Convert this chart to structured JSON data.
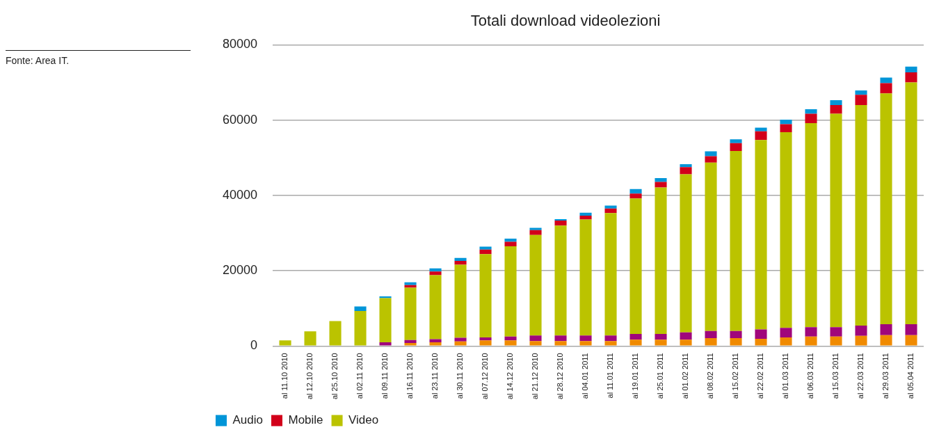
{
  "chart_data": {
    "type": "bar",
    "title": "Totali download videolezioni",
    "annotations": [
      "Fonte: Area IT."
    ],
    "categories": [
      "al 11.10 2010",
      "al 12.10 2010",
      "al 25.10 2010",
      "al 02.11 2010",
      "al 09.11 2010",
      "al 16.11 2010",
      "al 23.11 2010",
      "al 30.11 2010",
      "al 07.12 2010",
      "al 14.12 2010",
      "al 21.12 2010",
      "al 28.12 2010",
      "al 04.01 2011",
      "al 11.01 2011",
      "al 19.01 2011",
      "al 25.01 2011",
      "al 01.02 2011",
      "al 08.02 2011",
      "al 15.02 2011",
      "al 22.02 2011",
      "al 01.03 2011",
      "al 06.03 2011",
      "al 15.03 2011",
      "al 22.03 2011",
      "al 29.03 2011",
      "al 05.04 2011"
    ],
    "stacked": true,
    "series": [
      {
        "color": "#f08a00",
        "values": [
          0,
          0,
          0,
          0,
          0,
          800,
          1000,
          1200,
          1500,
          1500,
          1300,
          1300,
          1300,
          1300,
          1700,
          1700,
          1700,
          2100,
          2100,
          1900,
          2300,
          2500,
          2500,
          2700,
          2900,
          2900
        ]
      },
      {
        "color": "#a0067b",
        "values": [
          0,
          0,
          0,
          0,
          1000,
          800,
          800,
          1000,
          800,
          1000,
          1500,
          1500,
          1500,
          1500,
          1500,
          1500,
          1900,
          1900,
          1900,
          2500,
          2500,
          2500,
          2500,
          2700,
          2900,
          2900
        ]
      },
      {
        "name": "Video",
        "color": "#bbc300",
        "values": [
          1500,
          3900,
          6600,
          9300,
          11700,
          13900,
          17000,
          19400,
          22100,
          24000,
          26700,
          29200,
          30800,
          32500,
          36000,
          38900,
          42000,
          44700,
          47800,
          50300,
          52000,
          54200,
          56700,
          58600,
          61300,
          64200
        ]
      },
      {
        "name": "Mobile",
        "color": "#d2001a",
        "values": [
          0,
          0,
          0,
          0,
          0,
          700,
          1000,
          1000,
          1200,
          1200,
          1300,
          1300,
          1000,
          1200,
          1300,
          1500,
          1900,
          1700,
          2100,
          2300,
          2100,
          2500,
          2300,
          2700,
          2700,
          2700
        ]
      },
      {
        "name": "Audio",
        "color": "#0095d8",
        "values": [
          0,
          0,
          0,
          1200,
          500,
          700,
          800,
          800,
          800,
          800,
          600,
          400,
          800,
          800,
          1200,
          1000,
          800,
          1300,
          1000,
          1000,
          1200,
          1200,
          1300,
          1200,
          1500,
          1500
        ]
      }
    ],
    "ylim": [
      0,
      80000
    ],
    "yticks": [
      0,
      20000,
      40000,
      60000,
      80000
    ],
    "grid": "y",
    "legend": "bottom left"
  }
}
